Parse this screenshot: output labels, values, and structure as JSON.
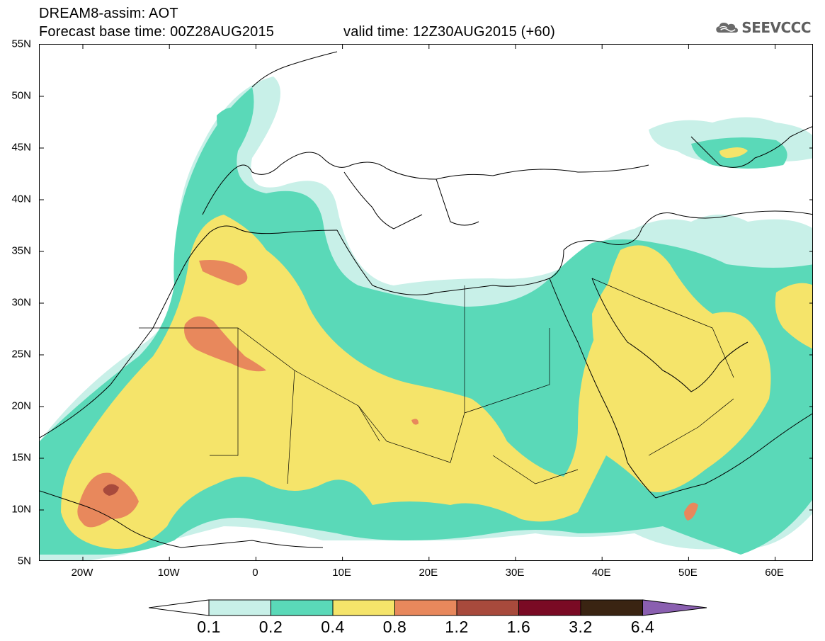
{
  "header": {
    "title": "DREAM8-assim: AOT",
    "base_time": "Forecast base time: 00Z28AUG2015",
    "valid_time": "valid time: 12Z30AUG2015 (+60)"
  },
  "logo": {
    "text": "SEEVCCC",
    "icon": "cloud-logo-icon"
  },
  "map": {
    "lat_labels": [
      "55N",
      "50N",
      "45N",
      "40N",
      "35N",
      "30N",
      "25N",
      "20N",
      "15N",
      "10N",
      "5N"
    ],
    "lon_labels": [
      "20W",
      "10W",
      "0",
      "10E",
      "20E",
      "30E",
      "40E",
      "50E",
      "60E"
    ]
  },
  "colorbar": {
    "labels": [
      "0.1",
      "0.2",
      "0.4",
      "0.8",
      "1.2",
      "1.6",
      "3.2",
      "6.4"
    ],
    "colors": [
      "#c8f0e8",
      "#5ad9b8",
      "#f5e46a",
      "#e8885c",
      "#a84a3c",
      "#7a0a24",
      "#3a2412",
      "#8a5fb0"
    ],
    "low_color": "#ffffff"
  }
}
